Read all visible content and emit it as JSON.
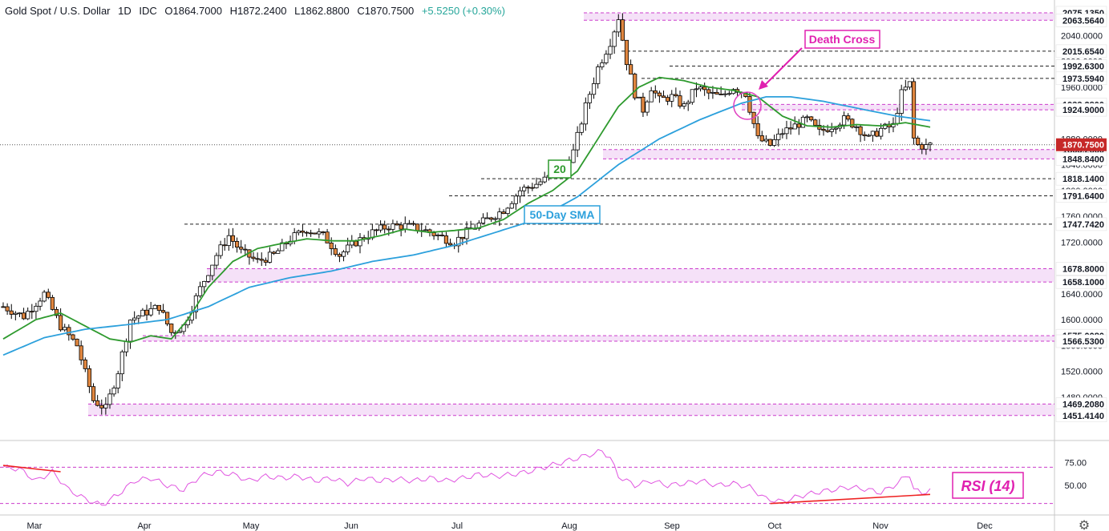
{
  "header": {
    "symbol": "Gold Spot / U.S. Dollar",
    "interval": "1D",
    "source": "IDC",
    "open": "O1864.7000",
    "high": "H1872.2400",
    "low": "L1862.8800",
    "close": "C1870.7500",
    "change": "+5.5250 (+0.30%)"
  },
  "colors": {
    "bull": "#ffffff",
    "bear": "#e0863f",
    "candle_outline": "#000000",
    "sma20": "#2e9a2e",
    "sma50": "#2ca0dc",
    "zone_fill": "#f3dcf7",
    "zone_line": "#cc3ccc",
    "rsi_line": "#e055e0",
    "trend_red": "#ee2222",
    "last_price_bg": "#c62828"
  },
  "chart_data": [
    {
      "type": "candlestick",
      "title": "",
      "x_ticks": [
        "Mar",
        "Apr",
        "May",
        "Jun",
        "Jul",
        "Aug",
        "Sep",
        "Oct",
        "Nov",
        "Dec"
      ],
      "y_ticks": [
        1480,
        1520,
        1560,
        1600,
        1640,
        1680,
        1720,
        1760,
        1800,
        1840,
        1880,
        1920,
        1960,
        2000,
        2040
      ],
      "y_tick_labels": [
        "1480.0000",
        "1520.0000",
        "1560.0000",
        "1600.0000",
        "1640.0000",
        "1680.0000",
        "1720.0000",
        "1760.0000",
        "1800.0000",
        "1840.0000",
        "1880.0000",
        "1920.0000",
        "1960.0000",
        "2000.0000",
        "2040.0000"
      ],
      "ylim": [
        1440,
        2085
      ],
      "levels": [
        {
          "value": 2075.135,
          "label": "2075.1350"
        },
        {
          "value": 2063.564,
          "label": "2063.5640"
        },
        {
          "value": 2015.654,
          "label": "2015.6540"
        },
        {
          "value": 1992.63,
          "label": "1992.6300"
        },
        {
          "value": 1973.594,
          "label": "1973.5940"
        },
        {
          "value": 1933.28,
          "label": "1933.2800"
        },
        {
          "value": 1924.9,
          "label": "1924.9000"
        },
        {
          "value": 1863.266,
          "label": "1863.2660"
        },
        {
          "value": 1848.84,
          "label": "1848.8400"
        },
        {
          "value": 1818.14,
          "label": "1818.1400"
        },
        {
          "value": 1791.64,
          "label": "1791.6400"
        },
        {
          "value": 1747.742,
          "label": "1747.7420"
        },
        {
          "value": 1678.8,
          "label": "1678.8000"
        },
        {
          "value": 1658.1,
          "label": "1658.1000"
        },
        {
          "value": 1575.008,
          "label": "1575.0080"
        },
        {
          "value": 1566.53,
          "label": "1566.5300"
        },
        {
          "value": 1469.208,
          "label": "1469.2080"
        },
        {
          "value": 1451.414,
          "label": "1451.4140"
        }
      ],
      "last_price": {
        "value": 1870.75,
        "label": "1870.7500"
      },
      "annotations": {
        "death_cross": "Death Cross",
        "sma20_label": "20",
        "sma50_label": "50-Day SMA"
      },
      "series": [
        {
          "name": "Price",
          "close_points": [
            [
              0,
              1620
            ],
            [
              5,
              1605
            ],
            [
              10,
              1640
            ],
            [
              14,
              1590
            ],
            [
              18,
              1560
            ],
            [
              22,
              1475
            ],
            [
              25,
              1462
            ],
            [
              28,
              1520
            ],
            [
              31,
              1600
            ],
            [
              35,
              1612
            ],
            [
              38,
              1620
            ],
            [
              41,
              1580
            ],
            [
              44,
              1590
            ],
            [
              48,
              1648
            ],
            [
              52,
              1700
            ],
            [
              55,
              1730
            ],
            [
              58,
              1705
            ],
            [
              62,
              1690
            ],
            [
              66,
              1700
            ],
            [
              70,
              1725
            ],
            [
              74,
              1740
            ],
            [
              78,
              1730
            ],
            [
              82,
              1700
            ],
            [
              86,
              1720
            ],
            [
              90,
              1735
            ],
            [
              94,
              1745
            ],
            [
              98,
              1745
            ],
            [
              102,
              1740
            ],
            [
              106,
              1730
            ],
            [
              110,
              1720
            ],
            [
              114,
              1740
            ],
            [
              118,
              1755
            ],
            [
              122,
              1770
            ],
            [
              126,
              1800
            ],
            [
              130,
              1810
            ],
            [
              133,
              1820
            ],
            [
              136,
              1830
            ],
            [
              139,
              1860
            ],
            [
              142,
              1930
            ],
            [
              145,
              1990
            ],
            [
              148,
              2030
            ],
            [
              150,
              2068
            ],
            [
              152,
              2000
            ],
            [
              154,
              1950
            ],
            [
              156,
              1925
            ],
            [
              158,
              1960
            ],
            [
              160,
              1940
            ],
            [
              163,
              1945
            ],
            [
              166,
              1930
            ],
            [
              169,
              1960
            ],
            [
              172,
              1950
            ],
            [
              175,
              1945
            ],
            [
              178,
              1960
            ],
            [
              181,
              1950
            ],
            [
              184,
              1880
            ],
            [
              187,
              1870
            ],
            [
              190,
              1890
            ],
            [
              193,
              1900
            ],
            [
              196,
              1910
            ],
            [
              199,
              1890
            ],
            [
              202,
              1900
            ],
            [
              205,
              1910
            ],
            [
              208,
              1900
            ],
            [
              211,
              1880
            ],
            [
              214,
              1895
            ],
            [
              217,
              1900
            ],
            [
              219,
              1950
            ],
            [
              221,
              1965
            ],
            [
              222,
              1880
            ],
            [
              223,
              1870
            ],
            [
              225,
              1868
            ],
            [
              226,
              1870.75
            ]
          ]
        },
        {
          "name": "20",
          "points": [
            [
              0,
              1570
            ],
            [
              8,
              1600
            ],
            [
              14,
              1610
            ],
            [
              20,
              1590
            ],
            [
              26,
              1570
            ],
            [
              31,
              1565
            ],
            [
              36,
              1575
            ],
            [
              41,
              1570
            ],
            [
              45,
              1600
            ],
            [
              50,
              1650
            ],
            [
              56,
              1690
            ],
            [
              62,
              1710
            ],
            [
              68,
              1718
            ],
            [
              74,
              1725
            ],
            [
              80,
              1722
            ],
            [
              86,
              1722
            ],
            [
              92,
              1730
            ],
            [
              98,
              1740
            ],
            [
              104,
              1735
            ],
            [
              110,
              1738
            ],
            [
              116,
              1742
            ],
            [
              122,
              1755
            ],
            [
              128,
              1780
            ],
            [
              134,
              1800
            ],
            [
              140,
              1830
            ],
            [
              145,
              1880
            ],
            [
              150,
              1930
            ],
            [
              155,
              1960
            ],
            [
              160,
              1975
            ],
            [
              166,
              1970
            ],
            [
              172,
              1960
            ],
            [
              178,
              1955
            ],
            [
              184,
              1945
            ],
            [
              190,
              1915
            ],
            [
              196,
              1900
            ],
            [
              202,
              1898
            ],
            [
              208,
              1902
            ],
            [
              214,
              1900
            ],
            [
              220,
              1905
            ],
            [
              226,
              1898
            ]
          ]
        },
        {
          "name": "50-Day SMA",
          "points": [
            [
              0,
              1545
            ],
            [
              10,
              1572
            ],
            [
              20,
              1585
            ],
            [
              30,
              1592
            ],
            [
              40,
              1600
            ],
            [
              50,
              1620
            ],
            [
              60,
              1650
            ],
            [
              70,
              1665
            ],
            [
              80,
              1675
            ],
            [
              90,
              1690
            ],
            [
              100,
              1700
            ],
            [
              110,
              1715
            ],
            [
              120,
              1735
            ],
            [
              130,
              1755
            ],
            [
              140,
              1790
            ],
            [
              150,
              1840
            ],
            [
              160,
              1880
            ],
            [
              170,
              1910
            ],
            [
              180,
              1935
            ],
            [
              186,
              1945
            ],
            [
              192,
              1945
            ],
            [
              200,
              1938
            ],
            [
              210,
              1925
            ],
            [
              218,
              1915
            ],
            [
              226,
              1908
            ]
          ]
        }
      ]
    },
    {
      "type": "line",
      "title": "RSI (14)",
      "y_ticks": [
        50,
        75
      ],
      "y_tick_labels": [
        "50.00",
        "75.00"
      ],
      "ylim": [
        20,
        95
      ],
      "guide_levels": [
        70,
        30
      ],
      "series": [
        {
          "name": "RSI (14)",
          "points": [
            [
              0,
              70
            ],
            [
              4,
              68
            ],
            [
              8,
              55
            ],
            [
              12,
              65
            ],
            [
              16,
              45
            ],
            [
              20,
              35
            ],
            [
              24,
              28
            ],
            [
              28,
              40
            ],
            [
              32,
              55
            ],
            [
              36,
              58
            ],
            [
              40,
              50
            ],
            [
              44,
              45
            ],
            [
              48,
              60
            ],
            [
              52,
              65
            ],
            [
              56,
              62
            ],
            [
              60,
              55
            ],
            [
              64,
              60
            ],
            [
              68,
              58
            ],
            [
              72,
              60
            ],
            [
              76,
              55
            ],
            [
              80,
              58
            ],
            [
              84,
              52
            ],
            [
              88,
              58
            ],
            [
              92,
              55
            ],
            [
              96,
              57
            ],
            [
              100,
              55
            ],
            [
              104,
              58
            ],
            [
              108,
              55
            ],
            [
              112,
              58
            ],
            [
              116,
              62
            ],
            [
              120,
              60
            ],
            [
              124,
              62
            ],
            [
              128,
              65
            ],
            [
              132,
              70
            ],
            [
              136,
              75
            ],
            [
              140,
              80
            ],
            [
              144,
              85
            ],
            [
              146,
              88
            ],
            [
              148,
              80
            ],
            [
              150,
              60
            ],
            [
              154,
              50
            ],
            [
              158,
              55
            ],
            [
              162,
              50
            ],
            [
              166,
              52
            ],
            [
              170,
              55
            ],
            [
              174,
              50
            ],
            [
              178,
              52
            ],
            [
              182,
              48
            ],
            [
              186,
              35
            ],
            [
              190,
              32
            ],
            [
              194,
              38
            ],
            [
              198,
              42
            ],
            [
              202,
              45
            ],
            [
              206,
              48
            ],
            [
              210,
              46
            ],
            [
              214,
              42
            ],
            [
              218,
              52
            ],
            [
              220,
              60
            ],
            [
              221,
              62
            ],
            [
              222,
              45
            ],
            [
              224,
              42
            ],
            [
              226,
              44
            ]
          ]
        }
      ],
      "trendlines": [
        {
          "from": [
            0,
            72
          ],
          "to": [
            14,
            65
          ]
        },
        {
          "from": [
            187,
            30
          ],
          "to": [
            226,
            40
          ]
        }
      ]
    }
  ]
}
